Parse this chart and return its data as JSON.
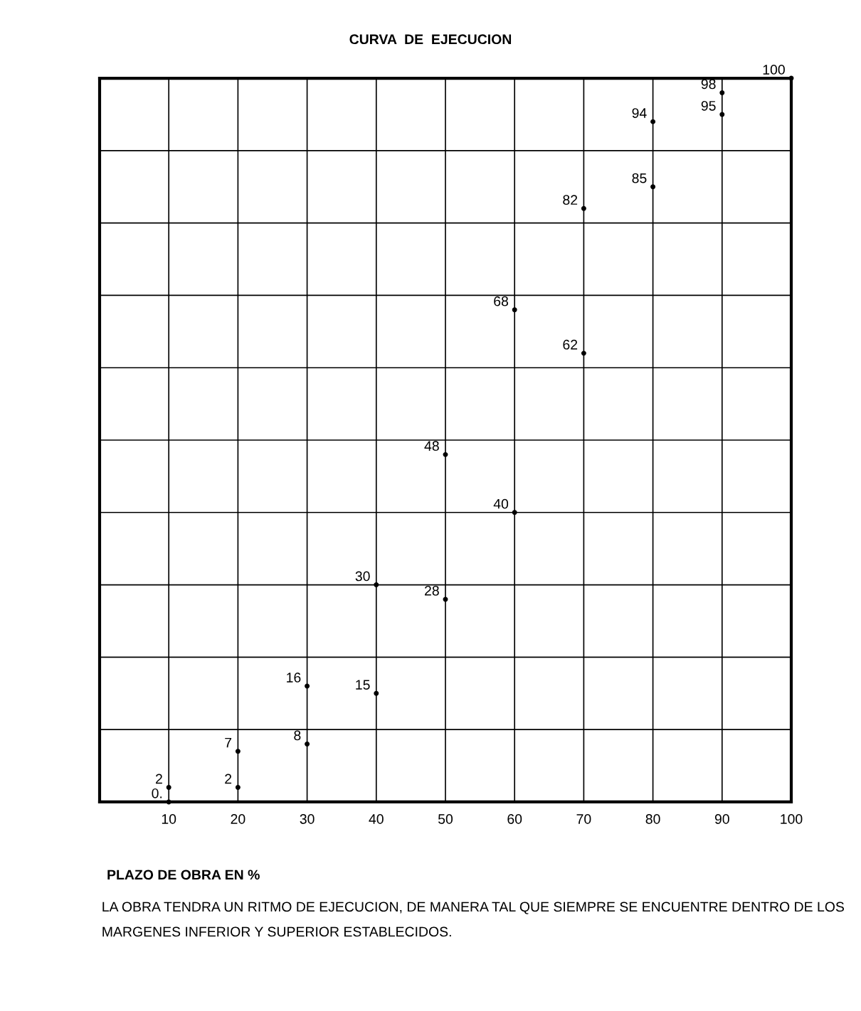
{
  "chart_data": {
    "type": "scatter",
    "title": "CURVA  DE  EJECUCION",
    "xlabel": "PLAZO DE OBRA EN %",
    "annotations": [
      "LA OBRA TENDRA UN RITMO DE EJECUCION, DE MANERA TAL QUE SIEMPRE SE ENCUENTRE DENTRO DE LOS MARGENES INFERIOR Y SUPERIOR ESTABLECIDOS."
    ],
    "marker": "circle",
    "grid": true,
    "tick_labels": "x",
    "xlim": [
      0,
      100
    ],
    "xticks": [
      10,
      20,
      30,
      40,
      50,
      60,
      70,
      80,
      90,
      100
    ],
    "ylim": [
      0,
      100
    ],
    "yticks": [
      0,
      10,
      20,
      30,
      40,
      50,
      60,
      70,
      80,
      90,
      100
    ],
    "series": [
      {
        "color": "#000000",
        "x": [
          10,
          20,
          30,
          40,
          50,
          60,
          70,
          80,
          90
        ],
        "values": [
          0,
          2,
          8,
          15,
          28,
          40,
          62,
          85,
          95
        ],
        "value_labels": [
          "0.",
          "2",
          "8",
          "15",
          "28",
          "40",
          "62",
          "85",
          "95"
        ]
      },
      {
        "color": "#000000",
        "x": [
          10,
          20,
          30,
          40,
          50,
          60,
          70,
          80,
          90,
          100
        ],
        "values": [
          2,
          7,
          16,
          30,
          48,
          68,
          82,
          94,
          98,
          100
        ],
        "value_labels": [
          "2",
          "7",
          "16",
          "30",
          "48",
          "68",
          "82",
          "94",
          "98",
          "100"
        ]
      }
    ]
  }
}
